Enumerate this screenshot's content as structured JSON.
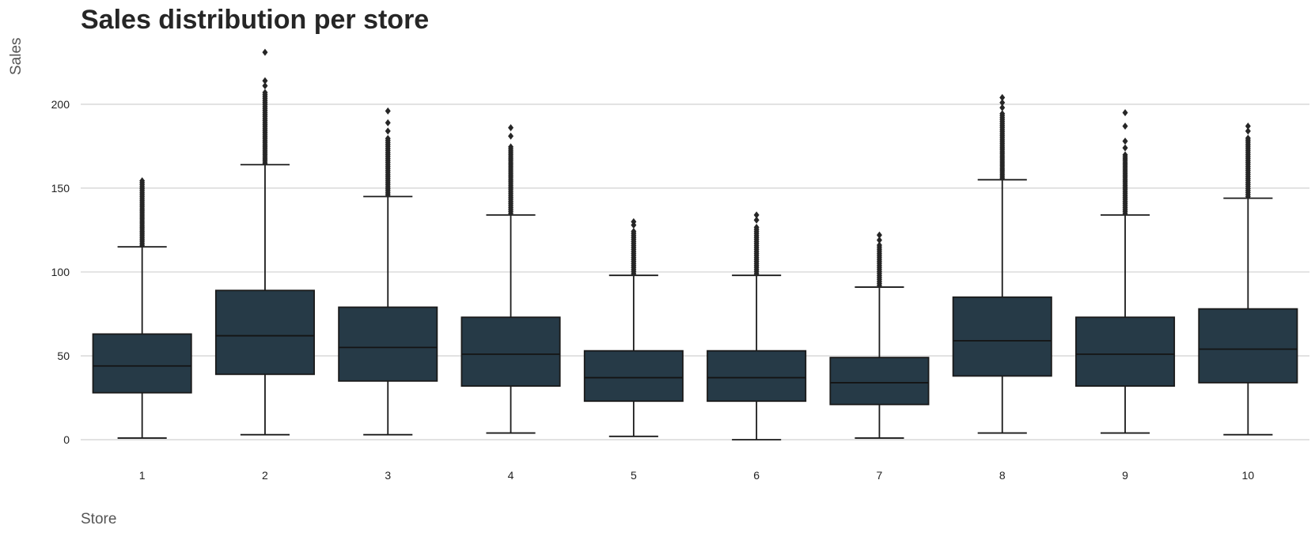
{
  "chart_data": {
    "type": "boxplot",
    "title": "Sales distribution per store",
    "xlabel": "Store",
    "ylabel": "Sales",
    "ylim": [
      -8,
      232
    ],
    "yticks": [
      0,
      50,
      100,
      150,
      200
    ],
    "grid": "horizontal",
    "legend": "none",
    "box_color": "#263a47",
    "line_color": "#1a1a1a",
    "categories": [
      "1",
      "2",
      "3",
      "4",
      "5",
      "6",
      "7",
      "8",
      "9",
      "10"
    ],
    "boxes": [
      {
        "store": "1",
        "whisker_low": 1,
        "q1": 28,
        "median": 44,
        "q3": 63,
        "whisker_high": 115,
        "outlier_min": 116,
        "outlier_max": 155,
        "outliers_sparse": []
      },
      {
        "store": "2",
        "whisker_low": 3,
        "q1": 39,
        "median": 62,
        "q3": 89,
        "whisker_high": 164,
        "outlier_min": 165,
        "outlier_max": 208,
        "outliers_sparse": [
          211,
          214,
          231
        ]
      },
      {
        "store": "3",
        "whisker_low": 3,
        "q1": 35,
        "median": 55,
        "q3": 79,
        "whisker_high": 145,
        "outlier_min": 146,
        "outlier_max": 180,
        "outliers_sparse": [
          184,
          189,
          196
        ]
      },
      {
        "store": "4",
        "whisker_low": 4,
        "q1": 32,
        "median": 51,
        "q3": 73,
        "whisker_high": 134,
        "outlier_min": 135,
        "outlier_max": 175,
        "outliers_sparse": [
          181,
          186
        ]
      },
      {
        "store": "5",
        "whisker_low": 2,
        "q1": 23,
        "median": 37,
        "q3": 53,
        "whisker_high": 98,
        "outlier_min": 99,
        "outlier_max": 125,
        "outliers_sparse": [
          128,
          130
        ]
      },
      {
        "store": "6",
        "whisker_low": 0,
        "q1": 23,
        "median": 37,
        "q3": 53,
        "whisker_high": 98,
        "outlier_min": 99,
        "outlier_max": 127,
        "outliers_sparse": [
          131,
          134
        ]
      },
      {
        "store": "7",
        "whisker_low": 1,
        "q1": 21,
        "median": 34,
        "q3": 49,
        "whisker_high": 91,
        "outlier_min": 92,
        "outlier_max": 117,
        "outliers_sparse": [
          119,
          122
        ]
      },
      {
        "store": "8",
        "whisker_low": 4,
        "q1": 38,
        "median": 59,
        "q3": 85,
        "whisker_high": 155,
        "outlier_min": 156,
        "outlier_max": 195,
        "outliers_sparse": [
          198,
          201,
          204
        ]
      },
      {
        "store": "9",
        "whisker_low": 4,
        "q1": 32,
        "median": 51,
        "q3": 73,
        "whisker_high": 134,
        "outlier_min": 135,
        "outlier_max": 170,
        "outliers_sparse": [
          174,
          178,
          187,
          195
        ]
      },
      {
        "store": "10",
        "whisker_low": 3,
        "q1": 34,
        "median": 54,
        "q3": 78,
        "whisker_high": 144,
        "outlier_min": 145,
        "outlier_max": 180,
        "outliers_sparse": [
          184,
          187
        ]
      }
    ]
  }
}
